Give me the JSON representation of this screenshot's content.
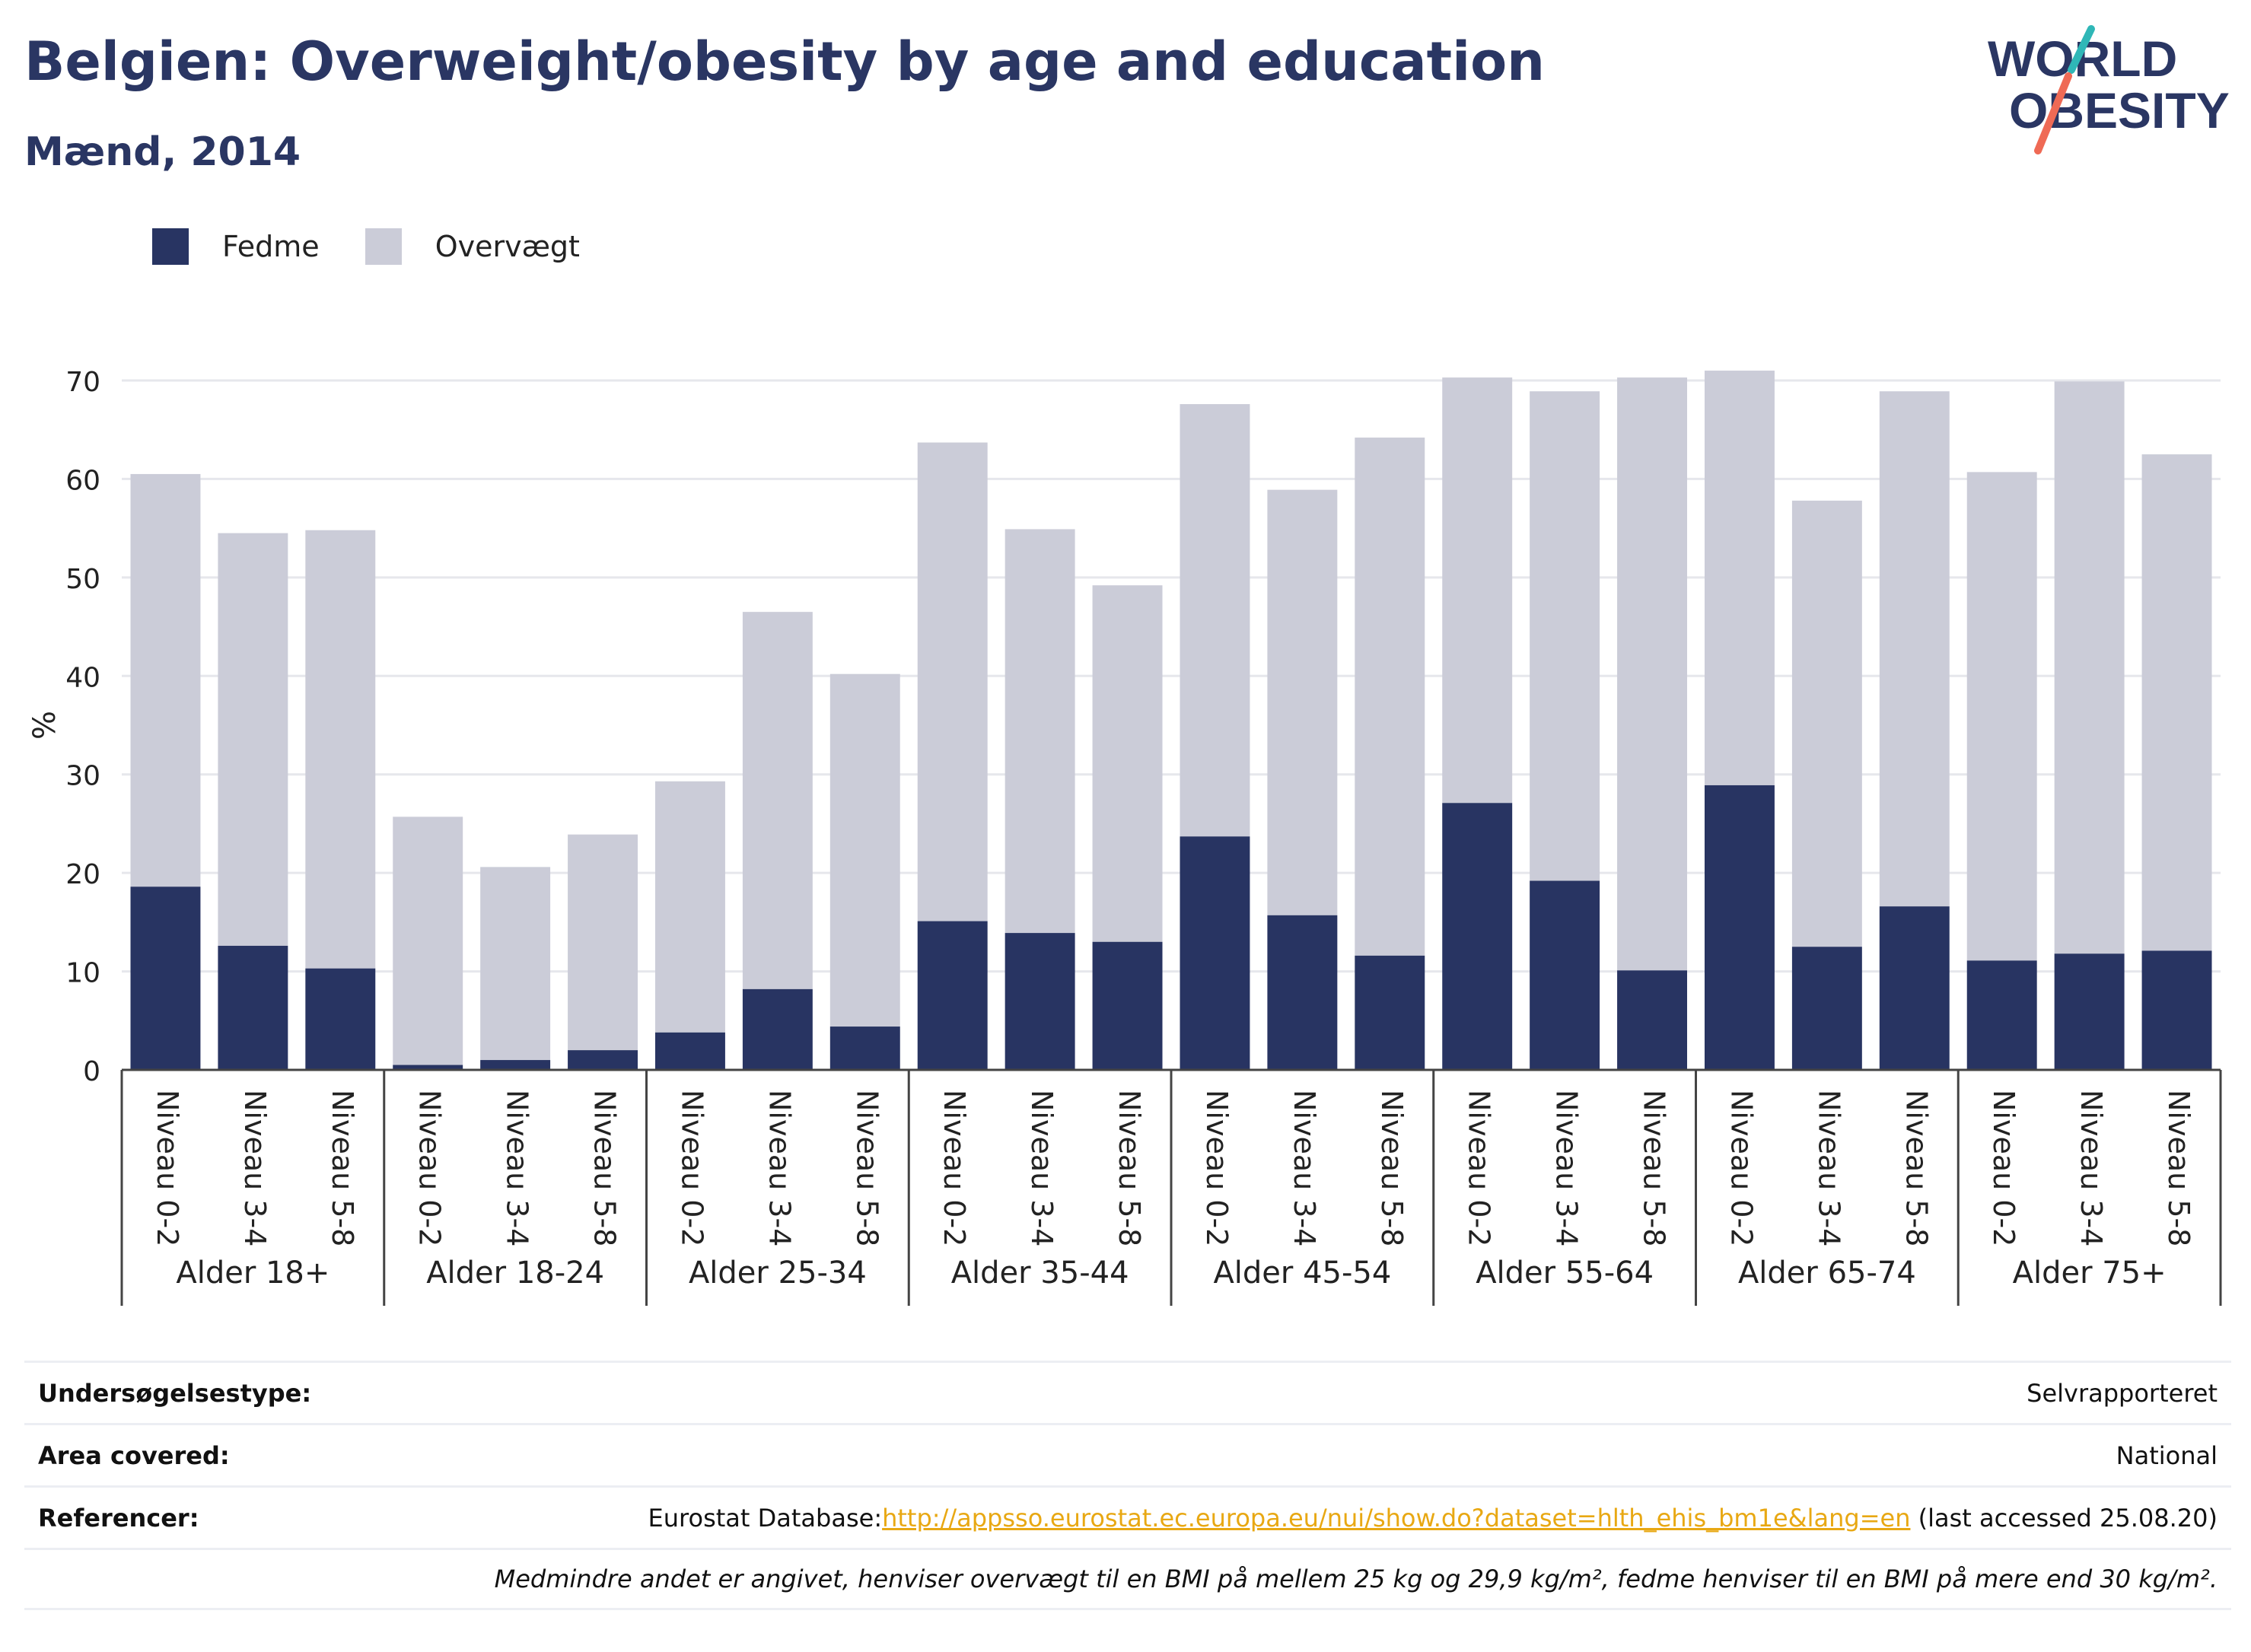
{
  "title": "Belgien: Overweight/obesity by age and education",
  "subtitle": "Mænd, 2014",
  "logo": {
    "line1": "WORLD",
    "line2": "OBESITY"
  },
  "colors": {
    "obesity": "#283462",
    "overweight": "#cbccd8",
    "grid": "#e6e7ec",
    "link": "#e8a813"
  },
  "chart_data": {
    "type": "bar",
    "stacked": true,
    "ylabel": "%",
    "ylim": [
      0,
      70
    ],
    "yticks": [
      0,
      10,
      20,
      30,
      40,
      50,
      60,
      70
    ],
    "grid": true,
    "legend_position": "top-left",
    "categories": [
      "Niveau 0-2",
      "Niveau 3-4",
      "Niveau 5-8",
      "Niveau 0-2",
      "Niveau 3-4",
      "Niveau 5-8",
      "Niveau 0-2",
      "Niveau 3-4",
      "Niveau 5-8",
      "Niveau 0-2",
      "Niveau 3-4",
      "Niveau 5-8",
      "Niveau 0-2",
      "Niveau 3-4",
      "Niveau 5-8",
      "Niveau 0-2",
      "Niveau 3-4",
      "Niveau 5-8",
      "Niveau 0-2",
      "Niveau 3-4",
      "Niveau 5-8",
      "Niveau 0-2",
      "Niveau 3-4",
      "Niveau 5-8"
    ],
    "groups": [
      "Alder 18+",
      "Alder 18-24",
      "Alder 25-34",
      "Alder 35-44",
      "Alder 45-54",
      "Alder 55-64",
      "Alder 65-74",
      "Alder 75+"
    ],
    "series": [
      {
        "name": "Fedme",
        "values": [
          18.6,
          12.6,
          10.3,
          0.5,
          1.0,
          2.0,
          3.8,
          8.2,
          4.4,
          15.1,
          13.9,
          13.0,
          23.7,
          15.7,
          11.6,
          27.1,
          19.2,
          10.1,
          28.9,
          12.5,
          16.6,
          11.1,
          11.8,
          12.1
        ]
      },
      {
        "name": "Overvægt",
        "values": [
          41.9,
          41.9,
          44.5,
          25.2,
          19.6,
          21.9,
          25.5,
          38.3,
          35.8,
          48.6,
          41.0,
          36.2,
          43.9,
          43.2,
          52.6,
          43.2,
          49.7,
          60.2,
          42.1,
          45.3,
          52.3,
          49.6,
          58.1,
          50.4
        ]
      }
    ]
  },
  "info": {
    "rows": [
      {
        "label": "Undersøgelsestype:",
        "value": "Selvrapporteret"
      },
      {
        "label": "Area covered:",
        "value": "National"
      }
    ],
    "references": {
      "label": "Referencer:",
      "prefix": "Eurostat Database:",
      "link": "http://appsso.eurostat.ec.europa.eu/nui/show.do?dataset=hlth_ehis_bm1e&lang=en",
      "suffix": " (last accessed 25.08.20)"
    },
    "note": "Medmindre andet er angivet, henviser overvægt til en BMI på mellem 25 kg og 29,9 kg/m², fedme henviser til en BMI på mere end 30 kg/m²."
  }
}
